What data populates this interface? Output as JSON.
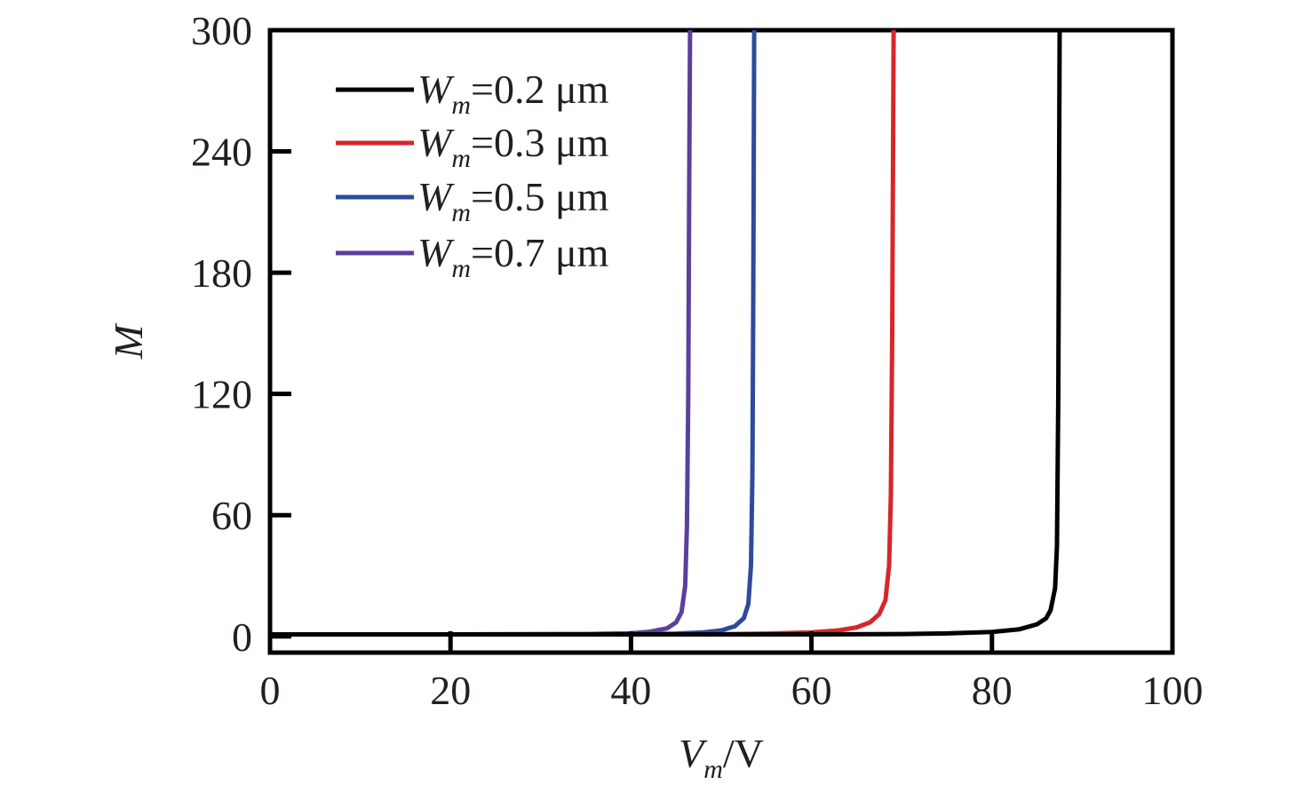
{
  "chart_data": {
    "type": "line",
    "xlabel_main": "V",
    "xlabel_sub": "m",
    "xlabel_unit": "/V",
    "ylabel": "M",
    "xlim": [
      0,
      100
    ],
    "ylim": [
      -8,
      300
    ],
    "x_ticks": [
      0,
      20,
      40,
      60,
      80,
      100
    ],
    "x_tick_labels": [
      "0",
      "20",
      "40",
      "60",
      "80",
      "100"
    ],
    "y_ticks": [
      0,
      60,
      120,
      180,
      240,
      300
    ],
    "y_tick_labels": [
      "0",
      "60",
      "120",
      "180",
      "240",
      "300"
    ],
    "legend_position": "top-left",
    "series": [
      {
        "name_main": "W",
        "name_sub": "m",
        "name_value": "=0.2 μm",
        "color": "#000000",
        "x": [
          0,
          20,
          40,
          60,
          70,
          75,
          80,
          83,
          85,
          86,
          86.5,
          87,
          87.2,
          87.35,
          87.5
        ],
        "y": [
          1,
          1,
          1,
          1,
          1.2,
          1.5,
          2.2,
          3.5,
          6,
          9,
          13,
          24,
          45,
          120,
          300
        ]
      },
      {
        "name_main": "W",
        "name_sub": "m",
        "name_value": "=0.3 μm",
        "color": "#d7262a",
        "x": [
          0,
          20,
          40,
          50,
          55,
          60,
          63,
          65,
          66.5,
          67.5,
          68.2,
          68.6,
          68.8,
          68.95,
          69.1
        ],
        "y": [
          1,
          1,
          1,
          1.1,
          1.4,
          2,
          3,
          4.5,
          7,
          11,
          18,
          35,
          70,
          150,
          300
        ]
      },
      {
        "name_main": "W",
        "name_sub": "m",
        "name_value": "=0.5 μm",
        "color": "#2e4a9b",
        "x": [
          0,
          20,
          40,
          45,
          48,
          50,
          51.5,
          52.5,
          53,
          53.3,
          53.45,
          53.55,
          53.65
        ],
        "y": [
          1,
          1,
          1.1,
          1.4,
          2,
          3,
          5,
          9,
          16,
          35,
          80,
          170,
          300
        ]
      },
      {
        "name_main": "W",
        "name_sub": "m",
        "name_value": "=0.7 μm",
        "color": "#5b3f9b",
        "x": [
          0,
          20,
          35,
          40,
          42,
          44,
          45,
          45.6,
          46,
          46.2,
          46.35,
          46.45,
          46.55
        ],
        "y": [
          1,
          1,
          1.2,
          1.6,
          2.3,
          4,
          7,
          12,
          25,
          55,
          120,
          220,
          300
        ]
      }
    ]
  }
}
